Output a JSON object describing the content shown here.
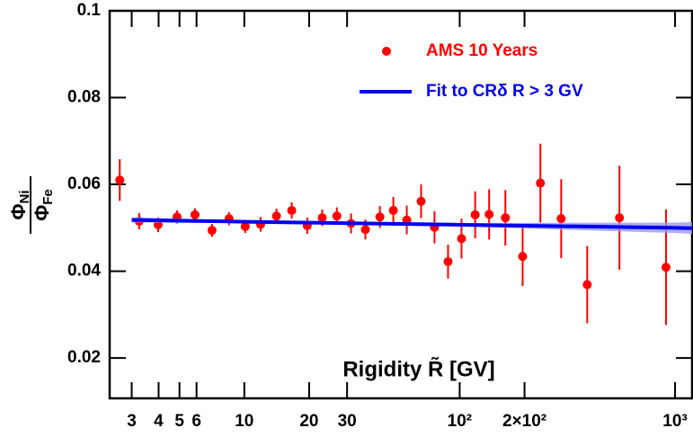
{
  "chart_data": {
    "type": "scatter",
    "x_label": "Rigidity  R̃ [GV]",
    "y_label": {
      "numerator": [
        "Φ",
        "Ni"
      ],
      "denominator": [
        "Φ",
        "Fe"
      ]
    },
    "xscale": "log",
    "xlim": [
      2.37,
      1200
    ],
    "ylim": [
      0.0107,
      0.1
    ],
    "xticks": [
      3,
      4,
      5,
      6,
      10,
      20,
      30,
      {
        "value": 100,
        "label": "10²"
      },
      {
        "value": 200,
        "label": "2×10²"
      },
      {
        "value": 1000,
        "label": "10³"
      }
    ],
    "yticks": [
      0.02,
      0.04,
      0.06,
      0.08,
      0.1
    ],
    "legend": "upper right",
    "series": [
      {
        "name": "AMS 10 Years",
        "color": "#ff0000",
        "x": [
          2.64,
          3.25,
          3.98,
          4.87,
          5.9,
          7.08,
          8.49,
          10.1,
          11.9,
          14.1,
          16.6,
          19.6,
          23.0,
          26.9,
          31.3,
          36.5,
          42.6,
          49.2,
          56.8,
          66.2,
          76.4,
          88.3,
          102,
          118,
          137,
          163,
          196,
          237,
          296,
          391,
          552,
          908
        ],
        "values": [
          0.061,
          0.0515,
          0.0507,
          0.0525,
          0.053,
          0.0494,
          0.0521,
          0.0503,
          0.0508,
          0.0527,
          0.054,
          0.0505,
          0.0523,
          0.0527,
          0.051,
          0.0496,
          0.0525,
          0.054,
          0.0518,
          0.0561,
          0.0501,
          0.0422,
          0.0475,
          0.053,
          0.0531,
          0.0523,
          0.0434,
          0.0603,
          0.0521,
          0.0369,
          0.0523,
          0.0409
        ],
        "errors": [
          0.0048,
          0.0019,
          0.0017,
          0.0015,
          0.0015,
          0.0015,
          0.0015,
          0.0015,
          0.0017,
          0.0017,
          0.0019,
          0.0019,
          0.0019,
          0.002,
          0.0023,
          0.0023,
          0.0025,
          0.0031,
          0.0033,
          0.0039,
          0.0037,
          0.0039,
          0.0046,
          0.0054,
          0.0058,
          0.0064,
          0.0068,
          0.0091,
          0.0091,
          0.0089,
          0.012,
          0.0133
        ]
      },
      {
        "name": "Fit to CRδ R > 3 GV",
        "color": "#0000ee",
        "band_color": "#9a9af0",
        "x": [
          3,
          10,
          100,
          1000,
          1200
        ],
        "values": [
          0.0518,
          0.0514,
          0.0507,
          0.05,
          0.0499
        ],
        "band_low": [
          0.0512,
          0.0511,
          0.0503,
          0.0488,
          0.0486
        ],
        "band_high": [
          0.0524,
          0.0517,
          0.0511,
          0.0512,
          0.0513
        ]
      }
    ]
  }
}
